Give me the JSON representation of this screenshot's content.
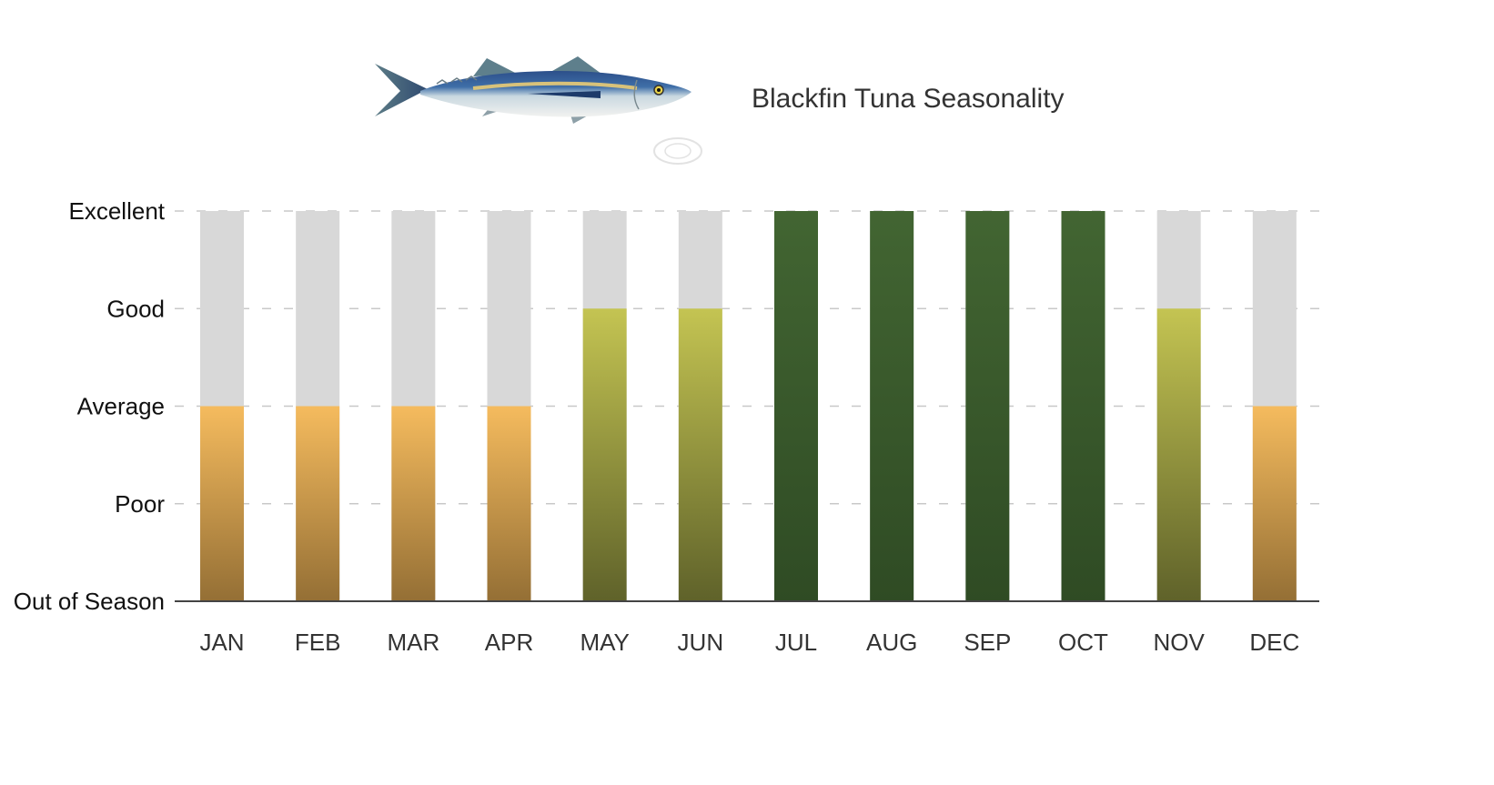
{
  "chart_data": {
    "type": "bar",
    "title": "Blackfin Tuna Seasonality",
    "categories": [
      "JAN",
      "FEB",
      "MAR",
      "APR",
      "MAY",
      "JUN",
      "JUL",
      "AUG",
      "SEP",
      "OCT",
      "NOV",
      "DEC"
    ],
    "values": [
      2,
      2,
      2,
      2,
      3,
      3,
      4,
      4,
      4,
      4,
      3,
      2
    ],
    "y_levels": [
      "Out of Season",
      "Poor",
      "Average",
      "Good",
      "Excellent"
    ],
    "ylim": [
      0,
      4
    ],
    "grid": true,
    "grid_style": "dashed",
    "colors": {
      "background_bar": "#d8d8d8",
      "average_top": "#f5bb5e",
      "average_bottom": "#946f35",
      "good_top": "#c4c452",
      "good_bottom": "#5f622a",
      "excellent_top": "#426532",
      "excellent_bottom": "#2f4b24",
      "grid": "#c8c8c8",
      "axis": "#444444"
    }
  },
  "header": {
    "fish_icon": "blackfin-tuna-illustration",
    "watermark_icon": "circular-logo-watermark"
  }
}
